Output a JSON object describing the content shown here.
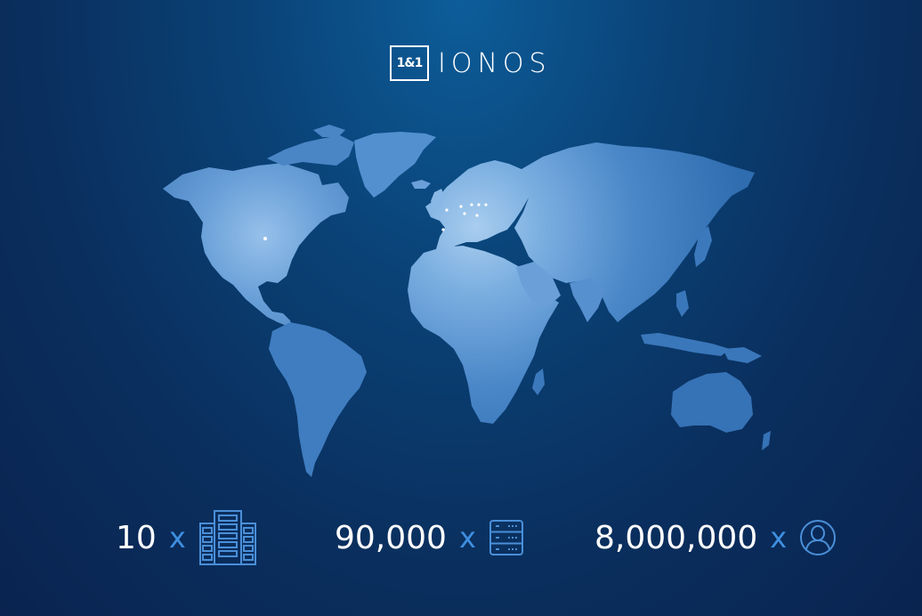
{
  "logo": {
    "mark": "1&1",
    "word": "IONOS"
  },
  "stats": [
    {
      "value": "10",
      "multiplier": "x",
      "icon": "data-center-building-icon"
    },
    {
      "value": "90,000",
      "multiplier": "x",
      "icon": "server-rack-icon"
    },
    {
      "value": "8,000,000",
      "multiplier": "x",
      "icon": "user-icon"
    }
  ],
  "colors": {
    "background_top": "#0d5d9a",
    "background_bottom": "#0a2350",
    "map_fill": "#3d7fc4",
    "accent_x": "#3f8fe0",
    "icon_stroke": "#4a8fd8"
  }
}
